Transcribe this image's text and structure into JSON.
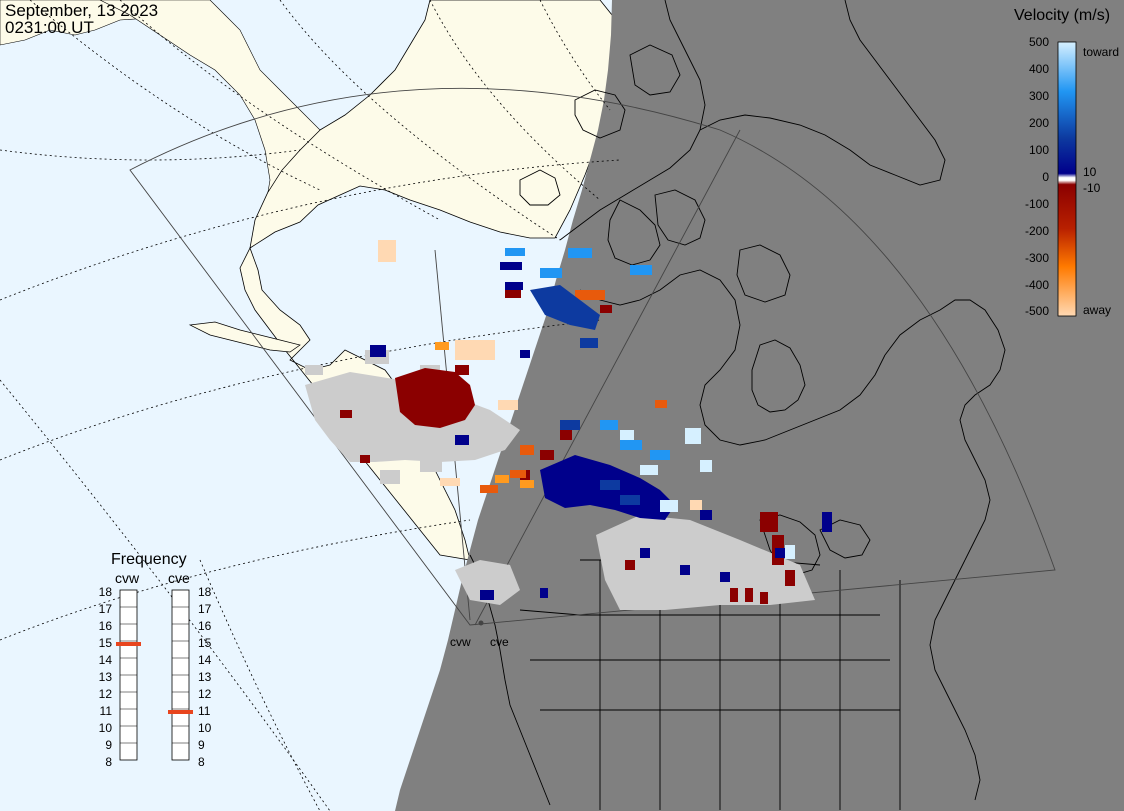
{
  "header": {
    "date": "September, 13 2023",
    "time": "0231:00 UT"
  },
  "velocity_legend": {
    "title": "Velocity (m/s)",
    "ticks": [
      "500",
      "400",
      "300",
      "200",
      "100",
      "0",
      "-100",
      "-200",
      "-300",
      "-400",
      "-500"
    ],
    "side_labels": {
      "toward": "toward",
      "away": "away",
      "pos_threshold": "10",
      "neg_threshold": "-10"
    },
    "colors": {
      "toward_light": "#d6f0ff",
      "toward_mid": "#2196f3",
      "toward_dark": "#0d3aa0",
      "toward_deep": "#00008b",
      "away_deep": "#8b0000",
      "away_mid": "#e85a0c",
      "away_orange": "#ff9a1f",
      "away_light": "#ffd9b3",
      "ground_scatter": "#cccccc"
    }
  },
  "frequency_legend": {
    "title": "Frequency",
    "radars": [
      {
        "code": "cvw",
        "frequency_mhz": 15
      },
      {
        "code": "cve",
        "frequency_mhz": 11
      }
    ],
    "scale": [
      "18",
      "17",
      "16",
      "15",
      "14",
      "13",
      "12",
      "11",
      "10",
      "9",
      "8"
    ]
  },
  "map": {
    "radar_sites": [
      "cvw",
      "cve"
    ],
    "colors": {
      "day_ocean": "#eaf6ff",
      "day_land": "#fdfbe9",
      "night": "#808080",
      "boundary": "#000000",
      "frequency_marker": "#e8451e"
    }
  }
}
